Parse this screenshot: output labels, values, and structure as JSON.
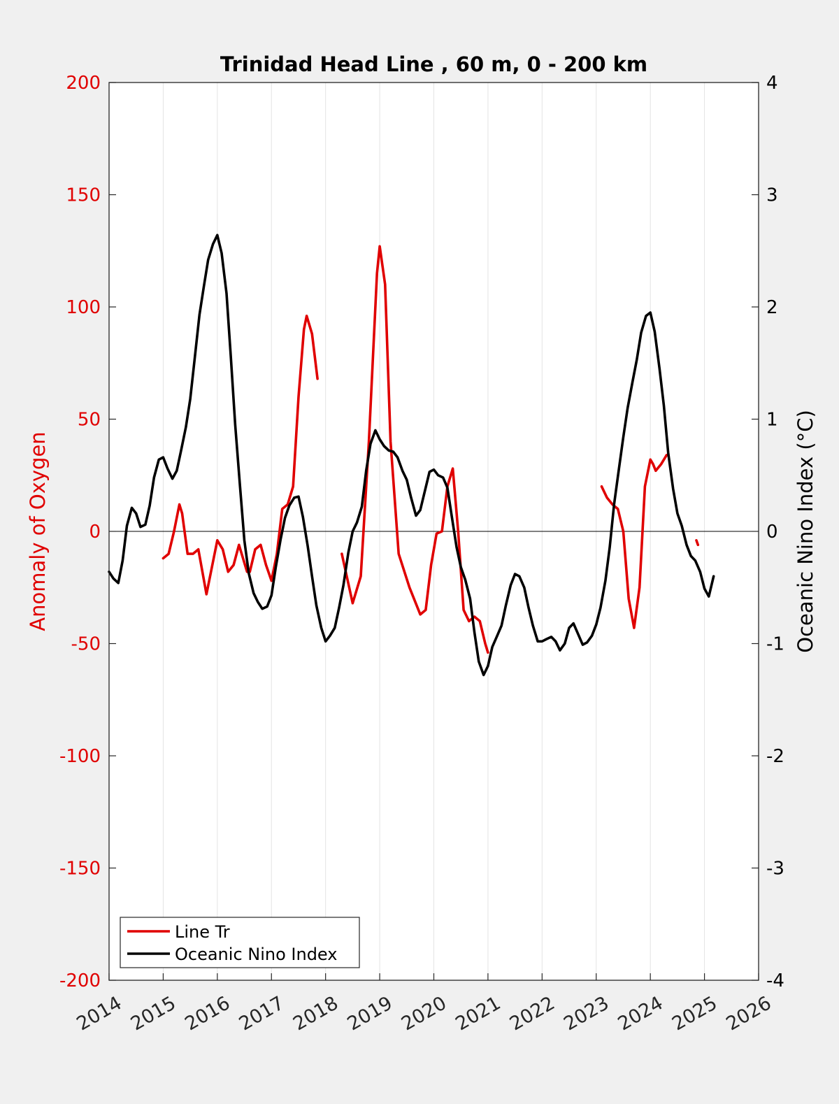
{
  "chart_data": {
    "type": "line",
    "title": "Trinidad Head Line , 60 m, 0 - 200 km",
    "xlabel": "",
    "ylabel_left": "Anomaly of Oxygen",
    "ylabel_right": "Oceanic Nino Index (°C)",
    "xlim": [
      2014,
      2026
    ],
    "ylim_left": [
      -200,
      200
    ],
    "ylim_right": [
      -4,
      4
    ],
    "x_ticks": [
      2014,
      2015,
      2016,
      2017,
      2018,
      2019,
      2020,
      2021,
      2022,
      2023,
      2024,
      2025,
      2026
    ],
    "y_ticks_left": [
      -200,
      -150,
      -100,
      -50,
      0,
      50,
      100,
      150,
      200
    ],
    "y_ticks_right": [
      -4,
      -3,
      -2,
      -1,
      0,
      1,
      2,
      3,
      4
    ],
    "grid": "vertical",
    "legend_position": "bottom-left",
    "colors": {
      "oxygen": "#e00000",
      "oni": "#000000",
      "left_axis": "#e00000",
      "right_axis": "#000000"
    },
    "series": [
      {
        "name": "Line Tr",
        "axis": "left",
        "color": "#e00000",
        "segments": [
          [
            [
              2015.0,
              -12
            ],
            [
              2015.1,
              -10
            ],
            [
              2015.2,
              0
            ],
            [
              2015.3,
              12
            ],
            [
              2015.35,
              8
            ],
            [
              2015.45,
              -10
            ],
            [
              2015.55,
              -10
            ],
            [
              2015.65,
              -8
            ],
            [
              2015.8,
              -28
            ],
            [
              2016.0,
              -4
            ],
            [
              2016.1,
              -8
            ],
            [
              2016.2,
              -18
            ],
            [
              2016.3,
              -15
            ],
            [
              2016.4,
              -6
            ],
            [
              2016.55,
              -18
            ],
            [
              2016.6,
              -18
            ],
            [
              2016.7,
              -8
            ],
            [
              2016.8,
              -6
            ],
            [
              2016.9,
              -15
            ],
            [
              2017.0,
              -22
            ],
            [
              2017.1,
              -10
            ],
            [
              2017.2,
              10
            ],
            [
              2017.3,
              12
            ],
            [
              2017.4,
              20
            ],
            [
              2017.5,
              60
            ],
            [
              2017.6,
              90
            ],
            [
              2017.65,
              96
            ],
            [
              2017.75,
              88
            ],
            [
              2017.85,
              68
            ]
          ],
          [
            [
              2018.3,
              -10
            ],
            [
              2018.5,
              -32
            ],
            [
              2018.65,
              -20
            ],
            [
              2018.8,
              40
            ],
            [
              2018.95,
              115
            ],
            [
              2019.0,
              127
            ],
            [
              2019.1,
              110
            ],
            [
              2019.2,
              40
            ],
            [
              2019.35,
              -10
            ],
            [
              2019.55,
              -25
            ],
            [
              2019.75,
              -37
            ],
            [
              2019.85,
              -35
            ],
            [
              2019.95,
              -15
            ],
            [
              2020.05,
              -1
            ],
            [
              2020.15,
              0
            ],
            [
              2020.25,
              20
            ],
            [
              2020.35,
              28
            ],
            [
              2020.45,
              0
            ],
            [
              2020.55,
              -35
            ],
            [
              2020.65,
              -40
            ],
            [
              2020.75,
              -38
            ],
            [
              2020.85,
              -40
            ],
            [
              2020.95,
              -50
            ],
            [
              2021.0,
              -54
            ]
          ],
          [
            [
              2023.1,
              20
            ],
            [
              2023.2,
              15
            ],
            [
              2023.3,
              12
            ],
            [
              2023.4,
              10
            ],
            [
              2023.5,
              0
            ],
            [
              2023.6,
              -30
            ],
            [
              2023.7,
              -43
            ],
            [
              2023.8,
              -25
            ],
            [
              2023.9,
              20
            ],
            [
              2024.0,
              32
            ],
            [
              2024.05,
              30
            ],
            [
              2024.1,
              27
            ],
            [
              2024.2,
              30
            ],
            [
              2024.3,
              34
            ]
          ],
          [
            [
              2024.85,
              -4
            ],
            [
              2024.88,
              -6
            ]
          ]
        ]
      },
      {
        "name": "Oceanic Nino Index",
        "axis": "right",
        "color": "#000000",
        "segments": [
          [
            [
              2014.0,
              -0.36
            ],
            [
              2014.08,
              -0.42
            ],
            [
              2014.17,
              -0.46
            ],
            [
              2014.25,
              -0.26
            ],
            [
              2014.33,
              0.05
            ],
            [
              2014.42,
              0.21
            ],
            [
              2014.5,
              0.16
            ],
            [
              2014.58,
              0.04
            ],
            [
              2014.67,
              0.06
            ],
            [
              2014.75,
              0.23
            ],
            [
              2014.83,
              0.48
            ],
            [
              2014.92,
              0.64
            ],
            [
              2015.0,
              0.66
            ],
            [
              2015.08,
              0.56
            ],
            [
              2015.17,
              0.47
            ],
            [
              2015.25,
              0.54
            ],
            [
              2015.33,
              0.72
            ],
            [
              2015.42,
              0.93
            ],
            [
              2015.5,
              1.18
            ],
            [
              2015.58,
              1.53
            ],
            [
              2015.67,
              1.93
            ],
            [
              2015.75,
              2.18
            ],
            [
              2015.83,
              2.42
            ],
            [
              2015.92,
              2.56
            ],
            [
              2016.0,
              2.64
            ],
            [
              2016.08,
              2.48
            ],
            [
              2016.17,
              2.12
            ],
            [
              2016.25,
              1.55
            ],
            [
              2016.33,
              0.95
            ],
            [
              2016.42,
              0.4
            ],
            [
              2016.5,
              -0.08
            ],
            [
              2016.58,
              -0.37
            ],
            [
              2016.67,
              -0.55
            ],
            [
              2016.75,
              -0.63
            ],
            [
              2016.83,
              -0.69
            ],
            [
              2016.92,
              -0.67
            ],
            [
              2017.0,
              -0.57
            ],
            [
              2017.08,
              -0.32
            ],
            [
              2017.17,
              -0.07
            ],
            [
              2017.25,
              0.12
            ],
            [
              2017.33,
              0.23
            ],
            [
              2017.42,
              0.3
            ],
            [
              2017.5,
              0.31
            ],
            [
              2017.58,
              0.13
            ],
            [
              2017.67,
              -0.13
            ],
            [
              2017.75,
              -0.4
            ],
            [
              2017.83,
              -0.66
            ],
            [
              2017.92,
              -0.86
            ],
            [
              2018.0,
              -0.98
            ],
            [
              2018.08,
              -0.93
            ],
            [
              2018.17,
              -0.86
            ],
            [
              2018.25,
              -0.68
            ],
            [
              2018.33,
              -0.48
            ],
            [
              2018.42,
              -0.19
            ],
            [
              2018.5,
              0.0
            ],
            [
              2018.58,
              0.08
            ],
            [
              2018.67,
              0.22
            ],
            [
              2018.75,
              0.54
            ],
            [
              2018.83,
              0.78
            ],
            [
              2018.92,
              0.9
            ],
            [
              2019.0,
              0.82
            ],
            [
              2019.08,
              0.76
            ],
            [
              2019.17,
              0.72
            ],
            [
              2019.25,
              0.71
            ],
            [
              2019.33,
              0.66
            ],
            [
              2019.42,
              0.54
            ],
            [
              2019.5,
              0.46
            ],
            [
              2019.58,
              0.3
            ],
            [
              2019.67,
              0.14
            ],
            [
              2019.75,
              0.19
            ],
            [
              2019.83,
              0.35
            ],
            [
              2019.92,
              0.53
            ],
            [
              2020.0,
              0.55
            ],
            [
              2020.08,
              0.5
            ],
            [
              2020.17,
              0.48
            ],
            [
              2020.25,
              0.39
            ],
            [
              2020.33,
              0.14
            ],
            [
              2020.42,
              -0.14
            ],
            [
              2020.5,
              -0.32
            ],
            [
              2020.58,
              -0.43
            ],
            [
              2020.67,
              -0.6
            ],
            [
              2020.75,
              -0.9
            ],
            [
              2020.83,
              -1.16
            ],
            [
              2020.92,
              -1.28
            ],
            [
              2021.0,
              -1.2
            ],
            [
              2021.08,
              -1.03
            ],
            [
              2021.17,
              -0.93
            ],
            [
              2021.25,
              -0.84
            ],
            [
              2021.33,
              -0.66
            ],
            [
              2021.42,
              -0.48
            ],
            [
              2021.5,
              -0.38
            ],
            [
              2021.58,
              -0.4
            ],
            [
              2021.67,
              -0.5
            ],
            [
              2021.75,
              -0.68
            ],
            [
              2021.83,
              -0.84
            ],
            [
              2021.92,
              -0.98
            ],
            [
              2022.0,
              -0.98
            ],
            [
              2022.08,
              -0.96
            ],
            [
              2022.17,
              -0.94
            ],
            [
              2022.25,
              -0.98
            ],
            [
              2022.33,
              -1.06
            ],
            [
              2022.42,
              -1.0
            ],
            [
              2022.5,
              -0.86
            ],
            [
              2022.58,
              -0.82
            ],
            [
              2022.67,
              -0.92
            ],
            [
              2022.75,
              -1.01
            ],
            [
              2022.83,
              -0.99
            ],
            [
              2022.92,
              -0.93
            ],
            [
              2023.0,
              -0.83
            ],
            [
              2023.08,
              -0.68
            ],
            [
              2023.17,
              -0.44
            ],
            [
              2023.25,
              -0.14
            ],
            [
              2023.33,
              0.24
            ],
            [
              2023.42,
              0.56
            ],
            [
              2023.5,
              0.84
            ],
            [
              2023.58,
              1.1
            ],
            [
              2023.67,
              1.33
            ],
            [
              2023.75,
              1.53
            ],
            [
              2023.83,
              1.77
            ],
            [
              2023.92,
              1.92
            ],
            [
              2024.0,
              1.95
            ],
            [
              2024.08,
              1.78
            ],
            [
              2024.17,
              1.45
            ],
            [
              2024.25,
              1.12
            ],
            [
              2024.33,
              0.7
            ],
            [
              2024.42,
              0.38
            ],
            [
              2024.5,
              0.16
            ],
            [
              2024.58,
              0.05
            ],
            [
              2024.67,
              -0.12
            ],
            [
              2024.75,
              -0.22
            ],
            [
              2024.83,
              -0.26
            ],
            [
              2024.92,
              -0.36
            ],
            [
              2025.0,
              -0.51
            ],
            [
              2025.08,
              -0.58
            ],
            [
              2025.17,
              -0.4
            ]
          ]
        ]
      }
    ]
  }
}
